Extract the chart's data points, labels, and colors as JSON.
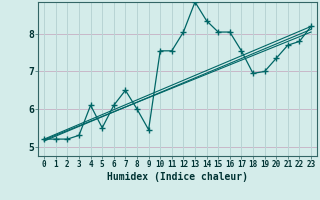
{
  "title": "",
  "xlabel": "Humidex (Indice chaleur)",
  "ylabel": "",
  "bg_color": "#d4ecea",
  "hgrid_color": "#c8b8c8",
  "vgrid_color": "#b8d4d4",
  "line_color": "#006666",
  "xlim": [
    -0.5,
    23.5
  ],
  "ylim": [
    4.75,
    8.85
  ],
  "x_ticks": [
    0,
    1,
    2,
    3,
    4,
    5,
    6,
    7,
    8,
    9,
    10,
    11,
    12,
    13,
    14,
    15,
    16,
    17,
    18,
    19,
    20,
    21,
    22,
    23
  ],
  "y_ticks": [
    5,
    6,
    7,
    8
  ],
  "main_x": [
    0,
    1,
    2,
    3,
    4,
    5,
    6,
    7,
    8,
    9,
    10,
    11,
    12,
    13,
    14,
    15,
    16,
    17,
    18,
    19,
    20,
    21,
    22,
    23
  ],
  "main_y": [
    5.2,
    5.2,
    5.2,
    5.3,
    6.1,
    5.5,
    6.1,
    6.5,
    6.0,
    5.45,
    7.55,
    7.55,
    8.05,
    8.85,
    8.35,
    8.05,
    8.05,
    7.55,
    6.95,
    7.0,
    7.35,
    7.7,
    7.8,
    8.2
  ],
  "line1_x": [
    0,
    23
  ],
  "line1_y": [
    5.2,
    8.2
  ],
  "line2_x": [
    0,
    23
  ],
  "line2_y": [
    5.18,
    8.05
  ],
  "line3_x": [
    0,
    23
  ],
  "line3_y": [
    5.15,
    8.12
  ]
}
